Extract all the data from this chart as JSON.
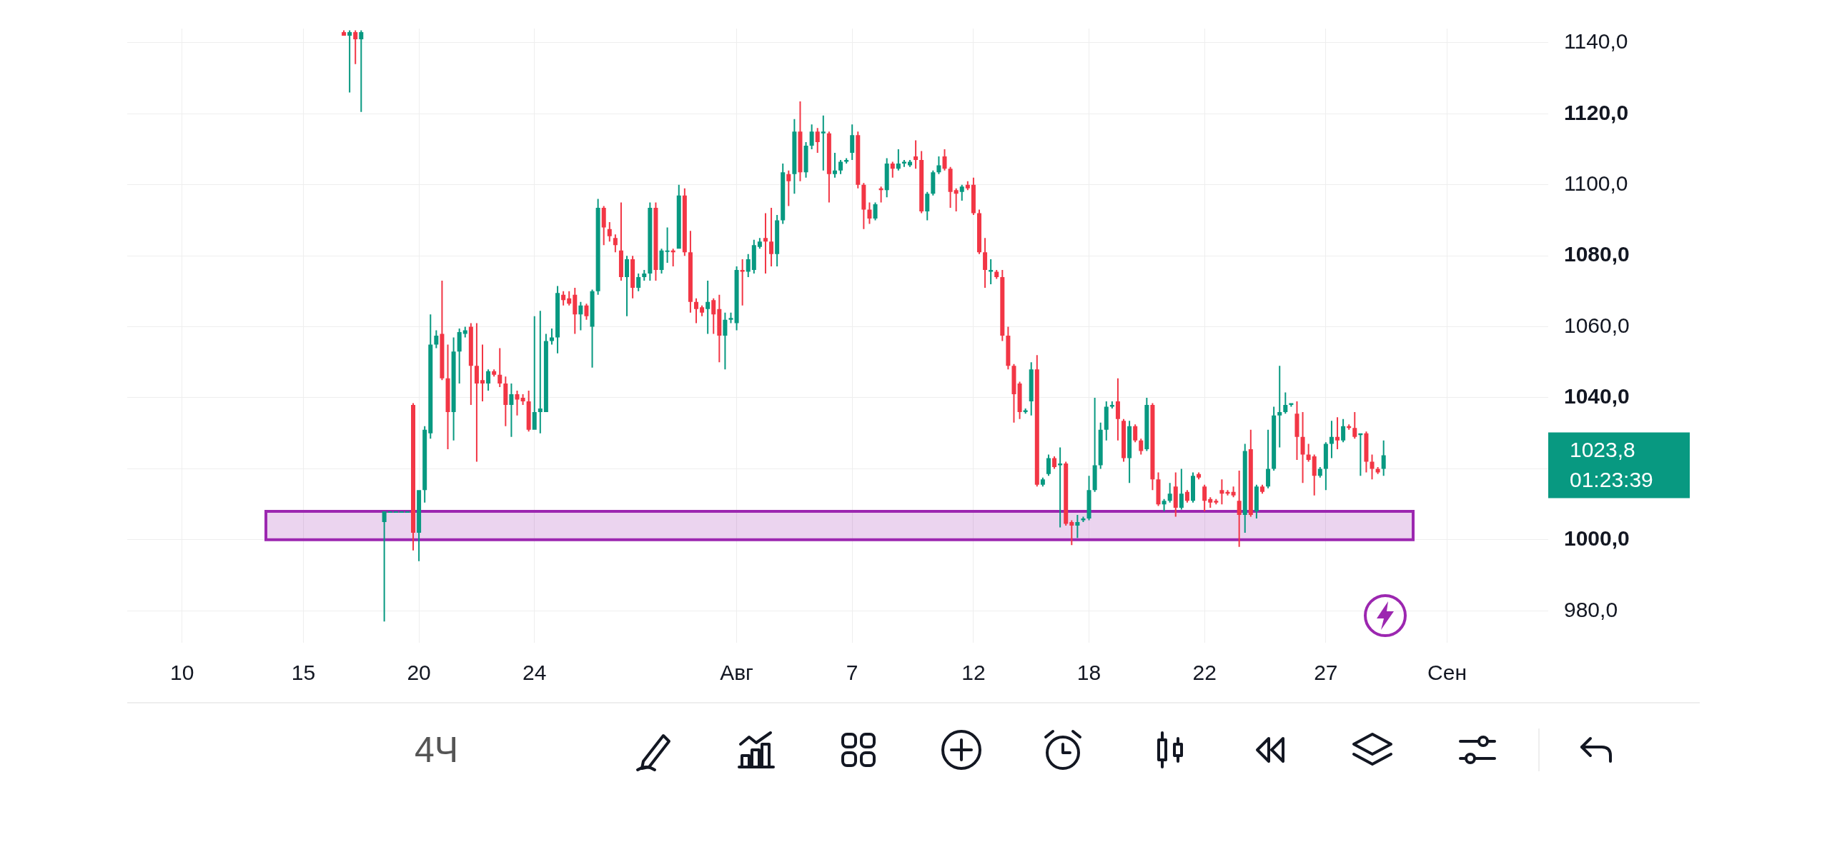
{
  "chart_data": {
    "type": "candlestick",
    "categories": [
      null,
      null,
      null,
      null,
      null,
      null,
      null,
      null,
      null,
      "10",
      null,
      null,
      null,
      null,
      null,
      null,
      null,
      null,
      null,
      null,
      null,
      null,
      null,
      null,
      null,
      null,
      null,
      null,
      null,
      null,
      "15",
      null,
      null,
      null,
      null,
      null,
      null,
      null,
      null,
      null,
      null,
      null,
      null,
      null,
      null,
      null,
      null,
      null,
      null,
      null,
      "20",
      null,
      null,
      null,
      null,
      null,
      null,
      null,
      null,
      null,
      null,
      null,
      null,
      null,
      null,
      null,
      null,
      null,
      null,
      null,
      "24",
      null,
      null,
      null,
      null,
      null,
      null,
      null,
      null,
      null,
      null,
      null,
      null,
      null,
      null,
      null,
      null,
      null,
      null,
      null,
      null,
      null,
      null,
      null,
      null,
      null,
      null,
      null,
      null,
      null,
      null,
      null,
      null,
      null,
      null,
      "Авг",
      null,
      null,
      null,
      null,
      null,
      null,
      null,
      null,
      null,
      null,
      null,
      null,
      null,
      null,
      null,
      null,
      null,
      null,
      null,
      "7",
      null,
      null,
      null,
      null,
      null,
      null,
      null,
      null,
      null,
      null,
      null,
      null,
      null,
      null,
      null,
      null,
      null,
      null,
      null,
      null,
      "12",
      null,
      null,
      null,
      null,
      null,
      null,
      null,
      null,
      null,
      null,
      null,
      null,
      null,
      null,
      null,
      null,
      null,
      null,
      null,
      "18",
      null,
      null,
      null,
      null,
      null,
      null,
      null,
      null,
      null,
      null,
      null,
      null,
      null,
      null,
      null,
      null,
      null,
      null,
      null,
      "22",
      null,
      null,
      null,
      null,
      null,
      null,
      null,
      null,
      null,
      null,
      null,
      null,
      null,
      null,
      null,
      null,
      null,
      null,
      null,
      null,
      "27",
      null,
      null,
      null,
      null,
      null,
      null,
      null,
      null,
      null,
      null,
      null,
      null,
      null,
      null,
      null,
      null,
      null,
      null,
      null,
      null,
      "Сен",
      null,
      null,
      null,
      null,
      null,
      null,
      null,
      null,
      null,
      null,
      null,
      null,
      null,
      null,
      null,
      null,
      null
    ],
    "ohlc": [
      null,
      null,
      null,
      null,
      null,
      null,
      null,
      null,
      null,
      null,
      null,
      null,
      null,
      null,
      null,
      null,
      null,
      null,
      null,
      null,
      null,
      null,
      null,
      null,
      null,
      null,
      null,
      null,
      null,
      null,
      null,
      null,
      null,
      null,
      null,
      null,
      null,
      [
        1143,
        1143.5,
        1142,
        1142
      ],
      [
        1142,
        1143.5,
        1126,
        1143
      ],
      [
        1143,
        1143.5,
        1134,
        1141
      ],
      [
        1141,
        1143.5,
        1120.5,
        1143
      ],
      null,
      null,
      null,
      [
        1005,
        1008,
        977,
        1008
      ],
      [
        1008,
        1008,
        1008,
        1008
      ],
      [
        1008,
        1008,
        1008,
        1008
      ],
      [
        1008,
        1008,
        1008,
        1008
      ],
      [
        1008,
        1008,
        1008,
        1008
      ],
      [
        1038,
        1038.5,
        997,
        1002
      ],
      [
        1002,
        1014,
        994,
        1014
      ],
      [
        1014,
        1032,
        1010.5,
        1031
      ],
      [
        1030,
        1063.5,
        1028.5,
        1055
      ],
      [
        1055,
        1059,
        1054,
        1057.5
      ],
      [
        1058,
        1073,
        1045,
        1045.5
      ],
      [
        1045.5,
        1055,
        1025.5,
        1036
      ],
      [
        1036,
        1057,
        1028,
        1053
      ],
      [
        1053,
        1059.5,
        1044,
        1058.5
      ],
      [
        1058,
        1060,
        1057,
        1059
      ],
      [
        1060,
        1061,
        1038,
        1049
      ],
      [
        1049,
        1061,
        1022,
        1044
      ],
      [
        1045,
        1055,
        1039,
        1044
      ],
      [
        1044,
        1048,
        1042,
        1047.5
      ],
      [
        1047.5,
        1048,
        1046,
        1046.5
      ],
      [
        1046.5,
        1054,
        1043,
        1044
      ],
      [
        1044,
        1046,
        1032,
        1038
      ],
      [
        1038,
        1044,
        1029,
        1041
      ],
      [
        1041,
        1042,
        1035,
        1039.5
      ],
      [
        1040,
        1041,
        1038,
        1039
      ],
      [
        1039,
        1042,
        1030.5,
        1031
      ],
      [
        1031,
        1063,
        1031,
        1036
      ],
      [
        1036,
        1064.5,
        1030,
        1037
      ],
      [
        1036,
        1058,
        1036,
        1056
      ],
      [
        1056,
        1059.5,
        1055,
        1057
      ],
      [
        1057,
        1071.5,
        1052.5,
        1069.5
      ],
      [
        1069,
        1070,
        1066,
        1067.5
      ],
      [
        1068,
        1070,
        1066,
        1066.5
      ],
      [
        1069,
        1071,
        1058,
        1063.5
      ],
      [
        1063.5,
        1067,
        1059,
        1066
      ],
      [
        1066,
        1066.5,
        1062,
        1063
      ],
      [
        1060,
        1070.5,
        1048.5,
        1070
      ],
      [
        1070,
        1096,
        1069,
        1093.5
      ],
      [
        1093.5,
        1094,
        1083,
        1088
      ],
      [
        1087.5,
        1089.5,
        1084,
        1085.5
      ],
      [
        1085,
        1086,
        1081,
        1083
      ],
      [
        1081.5,
        1095,
        1073,
        1074
      ],
      [
        1074,
        1080,
        1063,
        1079
      ],
      [
        1079,
        1080,
        1068,
        1071
      ],
      [
        1071,
        1075,
        1070,
        1074
      ],
      [
        1074,
        1076,
        1073,
        1075
      ],
      [
        1075,
        1095,
        1073,
        1093.5
      ],
      [
        1093.5,
        1095,
        1073,
        1076
      ],
      [
        1076,
        1082,
        1075,
        1081.5
      ],
      [
        1081.5,
        1088,
        1078,
        1081.5
      ],
      [
        1081.5,
        1082,
        1077,
        1081
      ],
      [
        1082,
        1100,
        1082,
        1097
      ],
      [
        1097,
        1099,
        1080,
        1081
      ],
      [
        1081,
        1087,
        1064,
        1067
      ],
      [
        1067,
        1068,
        1061,
        1065
      ],
      [
        1065.5,
        1066,
        1063,
        1064
      ],
      [
        1065,
        1073,
        1058,
        1067
      ],
      [
        1067.5,
        1068,
        1058,
        1063.5
      ],
      [
        1065,
        1069,
        1050,
        1057.5
      ],
      [
        1057.5,
        1064,
        1048,
        1062
      ],
      [
        1062,
        1064,
        1061,
        1062.5
      ],
      [
        1061,
        1077,
        1059,
        1076
      ],
      [
        1076,
        1079,
        1066,
        1075.5
      ],
      [
        1075.5,
        1080.5,
        1074,
        1079
      ],
      [
        1076,
        1084.5,
        1075,
        1083
      ],
      [
        1082.5,
        1085,
        1082,
        1084
      ],
      [
        1085,
        1092,
        1075,
        1084
      ],
      [
        1084,
        1093.5,
        1077,
        1080.5
      ],
      [
        1080.5,
        1091.5,
        1077,
        1090
      ],
      [
        1090,
        1106,
        1089,
        1103.5
      ],
      [
        1103,
        1104,
        1094,
        1101
      ],
      [
        1103,
        1118.5,
        1097.5,
        1115
      ],
      [
        1115,
        1123.5,
        1101,
        1103.5
      ],
      [
        1103.5,
        1112,
        1102,
        1111
      ],
      [
        1111,
        1117,
        1110,
        1115
      ],
      [
        1115,
        1116,
        1109,
        1112
      ],
      [
        1114.5,
        1119.5,
        1104,
        1115
      ],
      [
        1114.5,
        1115,
        1095,
        1103
      ],
      [
        1103,
        1109,
        1102,
        1104
      ],
      [
        1104,
        1107,
        1103,
        1106.5
      ],
      [
        1106.5,
        1107.5,
        1106,
        1107
      ],
      [
        1109,
        1117,
        1107,
        1114
      ],
      [
        1114,
        1115,
        1099,
        1100
      ],
      [
        1100,
        1100.5,
        1087.5,
        1093
      ],
      [
        1093,
        1095,
        1089,
        1090.5
      ],
      [
        1090.5,
        1095,
        1090,
        1094.5
      ],
      [
        1099,
        1099.5,
        1095,
        1098.5
      ],
      [
        1098.5,
        1107.5,
        1096.5,
        1106
      ],
      [
        1106,
        1106.5,
        1102,
        1104.5
      ],
      [
        1104.5,
        1110,
        1104,
        1106
      ],
      [
        1106,
        1107,
        1105,
        1106.5
      ],
      [
        1105.5,
        1107,
        1105,
        1106.5
      ],
      [
        1108,
        1112.5,
        1104.5,
        1107
      ],
      [
        1107,
        1109.5,
        1092,
        1092.5
      ],
      [
        1092.5,
        1098,
        1090,
        1097.5
      ],
      [
        1097.5,
        1104,
        1097,
        1103.5
      ],
      [
        1103.5,
        1108,
        1103,
        1105.5
      ],
      [
        1108,
        1110,
        1104,
        1104.5
      ],
      [
        1104.5,
        1105,
        1093.5,
        1098
      ],
      [
        1098.5,
        1099,
        1092.5,
        1097.5
      ],
      [
        1098,
        1100,
        1095.5,
        1099.5
      ],
      [
        1100,
        1101,
        1098.5,
        1099
      ],
      [
        1100,
        1102,
        1091.5,
        1092
      ],
      [
        1092,
        1093,
        1080.5,
        1081
      ],
      [
        1081,
        1085,
        1071,
        1076
      ],
      [
        1075.5,
        1079,
        1072,
        1076
      ],
      [
        1075.5,
        1076,
        1073.5,
        1074
      ],
      [
        1074,
        1076,
        1056,
        1057.5
      ],
      [
        1057.5,
        1060,
        1048,
        1049
      ],
      [
        1049,
        1049.5,
        1033,
        1041
      ],
      [
        1044,
        1044.5,
        1034,
        1036
      ],
      [
        1036,
        1037,
        1035.5,
        1036.5
      ],
      [
        1039,
        1050,
        1035,
        1048
      ],
      [
        1048,
        1052,
        1015,
        1015.5
      ],
      [
        1015.5,
        1017.5,
        1015,
        1017
      ],
      [
        1018.5,
        1024,
        1018,
        1023
      ],
      [
        1023,
        1023.5,
        1020,
        1020.5
      ],
      [
        1021,
        1026,
        1003.5,
        1021.5
      ],
      [
        1021.5,
        1022,
        1004,
        1004.5
      ],
      [
        1005,
        1005.5,
        998.5,
        1004
      ],
      [
        1004,
        1007,
        1000.5,
        1005
      ],
      [
        1005.5,
        1006.5,
        1005,
        1006
      ],
      [
        1006,
        1018,
        1005.5,
        1014
      ],
      [
        1014,
        1040,
        1013.5,
        1021
      ],
      [
        1021,
        1033,
        1020,
        1031
      ],
      [
        1031,
        1039,
        1028,
        1037.5
      ],
      [
        1037.5,
        1039,
        1037,
        1038
      ],
      [
        1039,
        1045.5,
        1028,
        1034
      ],
      [
        1033.5,
        1034,
        1022,
        1023
      ],
      [
        1023,
        1033.5,
        1016,
        1032
      ],
      [
        1032,
        1032.5,
        1027.5,
        1028
      ],
      [
        1028,
        1028.5,
        1024,
        1025
      ],
      [
        1025.5,
        1040,
        1025,
        1038
      ],
      [
        1038,
        1038.5,
        1014,
        1017
      ],
      [
        1017,
        1019,
        1009.5,
        1010
      ],
      [
        1010,
        1011.5,
        1008,
        1011
      ],
      [
        1011,
        1016,
        1010.5,
        1013
      ],
      [
        1015,
        1019,
        1006.5,
        1009
      ],
      [
        1009,
        1020,
        1008.5,
        1013
      ],
      [
        1013.5,
        1014,
        1010.5,
        1011
      ],
      [
        1011,
        1019,
        1010.5,
        1018
      ],
      [
        1018.5,
        1019,
        1017,
        1017.5
      ],
      [
        1015,
        1015.5,
        1008,
        1011
      ],
      [
        1011.5,
        1012,
        1009,
        1010.5
      ],
      [
        1011,
        1011.5,
        1010,
        1010.5
      ],
      [
        1014,
        1017,
        1010,
        1013
      ],
      [
        1013.5,
        1014,
        1012.5,
        1013
      ],
      [
        1013.5,
        1015,
        1012,
        1012.5
      ],
      [
        1011,
        1019.5,
        998,
        1007
      ],
      [
        1007,
        1027,
        1002,
        1025
      ],
      [
        1025.5,
        1031,
        1006.5,
        1007
      ],
      [
        1008,
        1015.5,
        1006,
        1015
      ],
      [
        1015,
        1015.5,
        1013,
        1013.5
      ],
      [
        1015,
        1031,
        1014.5,
        1020
      ],
      [
        1020,
        1037.5,
        1019.5,
        1035
      ],
      [
        1035,
        1049,
        1026,
        1036
      ],
      [
        1036,
        1041.5,
        1035.5,
        1038
      ],
      [
        1038,
        1038.5,
        1037.5,
        1038.5
      ],
      [
        1035.5,
        1039,
        1022.5,
        1029
      ],
      [
        1029,
        1036,
        1016,
        1024
      ],
      [
        1024,
        1027,
        1022,
        1022.5
      ],
      [
        1023.5,
        1024,
        1012.5,
        1018
      ],
      [
        1018,
        1020.5,
        1017.5,
        1020
      ],
      [
        1020,
        1027.5,
        1014,
        1027
      ],
      [
        1027,
        1033.5,
        1023,
        1029
      ],
      [
        1029,
        1034.5,
        1025.5,
        1028
      ],
      [
        1028,
        1034,
        1027.5,
        1032
      ],
      [
        1032,
        1032.5,
        1031,
        1031.5
      ],
      [
        1031.5,
        1036,
        1028.5,
        1029
      ],
      [
        1029.5,
        1030,
        1018,
        1030
      ],
      [
        1030,
        1030.5,
        1019,
        1022
      ],
      [
        1022,
        1024,
        1017,
        1020
      ],
      [
        1020,
        1020.5,
        1018.5,
        1019
      ],
      [
        1020,
        1028,
        1018,
        1023.8
      ],
      null,
      null,
      null,
      null,
      null,
      null,
      null,
      null,
      null,
      null,
      null,
      null,
      null,
      null,
      null,
      null,
      null,
      null,
      null,
      null,
      null,
      null,
      null,
      null,
      null,
      null,
      null,
      null
    ],
    "ylim": [
      971,
      1144
    ],
    "yticks": [
      {
        "value": 980,
        "label": "980,0"
      },
      {
        "value": 1000,
        "label": "1000,0"
      },
      {
        "value": 1020,
        "label": null
      },
      {
        "value": 1040,
        "label": "1040,0"
      },
      {
        "value": 1060,
        "label": "1060,0"
      },
      {
        "value": 1080,
        "label": "1080,0"
      },
      {
        "value": 1100,
        "label": "1100,0"
      },
      {
        "value": 1120,
        "label": "1120,0"
      },
      {
        "value": 1140,
        "label": "1140,0"
      }
    ],
    "grid": true,
    "bands": [
      {
        "axis": "y",
        "from": 1000,
        "to": 1008,
        "color": "#9c27b0"
      }
    ],
    "annotations": [
      "1023,8",
      "01:23:39",
      "4Ч"
    ]
  }
}
